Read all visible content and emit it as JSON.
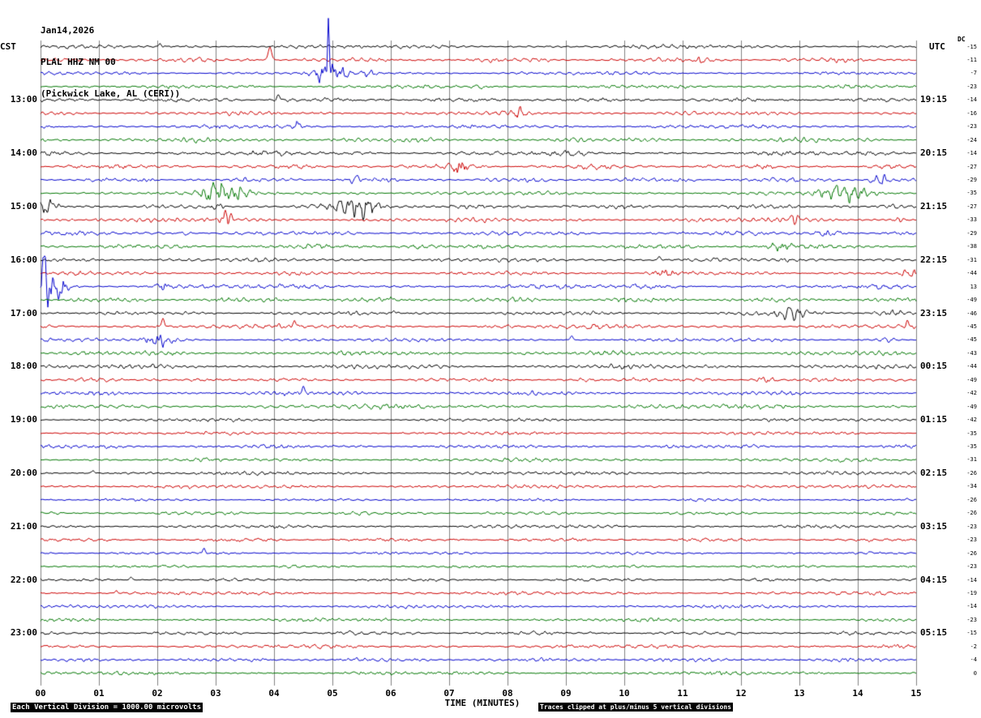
{
  "header": {
    "date": "Jan14,2026",
    "station": "PLAL HHZ NM 00",
    "location": "(Pickwick Lake, AL (CERI))"
  },
  "axes": {
    "dc_column_label": "DC",
    "x_axis_title": "TIME (MINUTES)",
    "left_labels": [
      {
        "row": 0,
        "text": "CST"
      },
      {
        "row": 4,
        "text": "13:00"
      },
      {
        "row": 8,
        "text": "14:00"
      },
      {
        "row": 12,
        "text": "15:00"
      },
      {
        "row": 16,
        "text": "16:00"
      },
      {
        "row": 20,
        "text": "17:00"
      },
      {
        "row": 24,
        "text": "18:00"
      },
      {
        "row": 28,
        "text": "19:00"
      },
      {
        "row": 32,
        "text": "20:00"
      },
      {
        "row": 36,
        "text": "21:00"
      },
      {
        "row": 40,
        "text": "22:00"
      },
      {
        "row": 44,
        "text": "23:00"
      }
    ],
    "right_labels": [
      {
        "row": 0,
        "text": "UTC"
      },
      {
        "row": 4,
        "text": "19:15"
      },
      {
        "row": 8,
        "text": "20:15"
      },
      {
        "row": 12,
        "text": "21:15"
      },
      {
        "row": 16,
        "text": "22:15"
      },
      {
        "row": 20,
        "text": "23:15"
      },
      {
        "row": 24,
        "text": "00:15"
      },
      {
        "row": 28,
        "text": "01:15"
      },
      {
        "row": 32,
        "text": "02:15"
      },
      {
        "row": 36,
        "text": "03:15"
      },
      {
        "row": 40,
        "text": "04:15"
      },
      {
        "row": 44,
        "text": "05:15"
      }
    ],
    "minutes": [
      "00",
      "01",
      "02",
      "03",
      "04",
      "05",
      "06",
      "07",
      "08",
      "09",
      "10",
      "11",
      "12",
      "13",
      "14",
      "15"
    ]
  },
  "footer": {
    "scale_note": "Each Vertical Division = 1000.00 microvolts",
    "clip_note": "Traces clipped at plus/minus 5 vertical divisions"
  },
  "chart_data": {
    "type": "seismogram",
    "station": "PLAL HHZ NM 00",
    "location": "Pickwick Lake, AL (CERI)",
    "date": "Jan14,2026",
    "x_range_minutes": [
      0,
      15
    ],
    "rows": 48,
    "minutes_per_row": 15,
    "first_row_cst": "12:00",
    "row_colors_cycle": [
      "#000000",
      "#cc0000",
      "#0000cc",
      "#007700"
    ],
    "grid_color": "#808080",
    "clip_divisions": 5,
    "microvolts_per_division": 1000.0,
    "dc_offsets": [
      -15,
      -11,
      -7,
      -23,
      -14,
      -16,
      -23,
      -24,
      -14,
      -27,
      -29,
      -35,
      -27,
      -33,
      -29,
      -38,
      -31,
      -44,
      13,
      -49,
      -46,
      -45,
      -45,
      -43,
      -44,
      -49,
      -42,
      -49,
      -42,
      -35,
      -35,
      -31,
      -26,
      -34,
      -26,
      -26,
      -23,
      -23,
      -26,
      -23,
      -14,
      -19,
      -14,
      -23,
      -15,
      -2,
      -4,
      0
    ],
    "noise": {
      "seed": 20260114,
      "base_amp": 1.9,
      "quiet_amp": 1.45,
      "quiet_start_row": 28
    },
    "events": [
      {
        "r": 0,
        "m": 2.05,
        "d": 0.03,
        "a": 2,
        "s": 1
      },
      {
        "r": 1,
        "m": 3.93,
        "d": 0.04,
        "a": 8,
        "s": 1
      },
      {
        "r": 1,
        "m": 11.3,
        "d": 0.1,
        "a": 2,
        "s": 0
      },
      {
        "r": 2,
        "m": 4.95,
        "d": 0.25,
        "a": 5,
        "s": 0
      },
      {
        "r": 2,
        "m": 4.93,
        "d": 0.02,
        "a": 45,
        "s": 1
      },
      {
        "r": 2,
        "m": 5.6,
        "d": 0.12,
        "a": 3,
        "s": 0
      },
      {
        "r": 3,
        "m": 7.5,
        "d": 0.1,
        "a": 1.8,
        "s": 0
      },
      {
        "r": 4,
        "m": 4.07,
        "d": 0.03,
        "a": 4,
        "s": 1
      },
      {
        "r": 5,
        "m": 8.2,
        "d": 0.1,
        "a": 1.8,
        "s": 0
      },
      {
        "r": 6,
        "m": 4.4,
        "d": 0.06,
        "a": 2.5,
        "s": 0
      },
      {
        "r": 9,
        "m": 7.15,
        "d": 0.15,
        "a": 4,
        "s": 0
      },
      {
        "r": 10,
        "m": 5.4,
        "d": 0.1,
        "a": 2.5,
        "s": 0
      },
      {
        "r": 10,
        "m": 14.35,
        "d": 0.15,
        "a": 3,
        "s": 0
      },
      {
        "r": 11,
        "m": 3.15,
        "d": 0.35,
        "a": 5,
        "s": 0
      },
      {
        "r": 11,
        "m": 5.5,
        "d": 0.2,
        "a": 2.5,
        "s": 0
      },
      {
        "r": 11,
        "m": 13.75,
        "d": 0.4,
        "a": 5,
        "s": 0
      },
      {
        "r": 12,
        "m": 0.15,
        "d": 0.15,
        "a": 3,
        "s": 0
      },
      {
        "r": 12,
        "m": 3.1,
        "d": 0.15,
        "a": 2.5,
        "s": 0
      },
      {
        "r": 12,
        "m": 5.55,
        "d": 0.45,
        "a": 6,
        "s": 0
      },
      {
        "r": 13,
        "m": 1.05,
        "d": 0.1,
        "a": 2,
        "s": 0
      },
      {
        "r": 13,
        "m": 3.2,
        "d": 0.1,
        "a": 4,
        "s": 0
      },
      {
        "r": 13,
        "m": 3.17,
        "d": 0.025,
        "a": 8,
        "s": 1
      },
      {
        "r": 13,
        "m": 12.9,
        "d": 0.1,
        "a": 2,
        "s": 0
      },
      {
        "r": 13,
        "m": 14.7,
        "d": 0.08,
        "a": 2.5,
        "s": 0
      },
      {
        "r": 14,
        "m": 2.5,
        "d": 0.1,
        "a": 2,
        "s": 0
      },
      {
        "r": 14,
        "m": 13.55,
        "d": 0.2,
        "a": 3.5,
        "s": 0
      },
      {
        "r": 15,
        "m": 6.35,
        "d": 0.2,
        "a": 3,
        "s": 0
      },
      {
        "r": 15,
        "m": 12.65,
        "d": 0.2,
        "a": 3,
        "s": 0
      },
      {
        "r": 16,
        "m": 10.6,
        "d": 0.03,
        "a": 2,
        "s": 1
      },
      {
        "r": 17,
        "m": 10.6,
        "d": 0.2,
        "a": 3,
        "s": 0
      },
      {
        "r": 17,
        "m": 14.9,
        "d": 0.1,
        "a": 2.5,
        "s": 0
      },
      {
        "r": 18,
        "m": 0.12,
        "d": 0.3,
        "a": 12,
        "s": 0
      },
      {
        "r": 18,
        "m": 0.07,
        "d": 0.03,
        "a": 20,
        "s": 1
      },
      {
        "r": 18,
        "m": 2.1,
        "d": 0.1,
        "a": 2,
        "s": 0
      },
      {
        "r": 19,
        "m": 6.0,
        "d": 0.03,
        "a": 2,
        "s": 1
      },
      {
        "r": 20,
        "m": 6.05,
        "d": 0.03,
        "a": 2,
        "s": 1
      },
      {
        "r": 20,
        "m": 12.85,
        "d": 0.25,
        "a": 3.5,
        "s": 0
      },
      {
        "r": 20,
        "m": 14.5,
        "d": 0.3,
        "a": 4,
        "s": 0
      },
      {
        "r": 21,
        "m": 2.1,
        "d": 0.03,
        "a": 5,
        "s": 1
      },
      {
        "r": 21,
        "m": 4.35,
        "d": 0.03,
        "a": 4,
        "s": 1
      },
      {
        "r": 21,
        "m": 14.85,
        "d": 0.03,
        "a": 3,
        "s": 1
      },
      {
        "r": 22,
        "m": 2.05,
        "d": 0.25,
        "a": 5,
        "s": 0
      },
      {
        "r": 22,
        "m": 9.1,
        "d": 0.03,
        "a": 3.5,
        "s": 1
      },
      {
        "r": 22,
        "m": 14.45,
        "d": 0.15,
        "a": 4,
        "s": 0
      },
      {
        "r": 25,
        "m": 2.7,
        "d": 0.2,
        "a": 2.5,
        "s": 0
      },
      {
        "r": 25,
        "m": 9.35,
        "d": 0.15,
        "a": 2.5,
        "s": 0
      },
      {
        "r": 25,
        "m": 12.4,
        "d": 0.2,
        "a": 2.5,
        "s": 0
      },
      {
        "r": 26,
        "m": 4.5,
        "d": 0.03,
        "a": 4,
        "s": 1
      },
      {
        "r": 32,
        "m": 0.9,
        "d": 0.03,
        "a": 2,
        "s": 1
      },
      {
        "r": 34,
        "m": 7.0,
        "d": 0.1,
        "a": 1.8,
        "s": 0
      },
      {
        "r": 38,
        "m": 2.8,
        "d": 0.03,
        "a": 4,
        "s": 1
      },
      {
        "r": 40,
        "m": 1.55,
        "d": 0.03,
        "a": 2.5,
        "s": 1
      },
      {
        "r": 41,
        "m": 1.3,
        "d": 0.03,
        "a": 2,
        "s": 1
      }
    ]
  }
}
